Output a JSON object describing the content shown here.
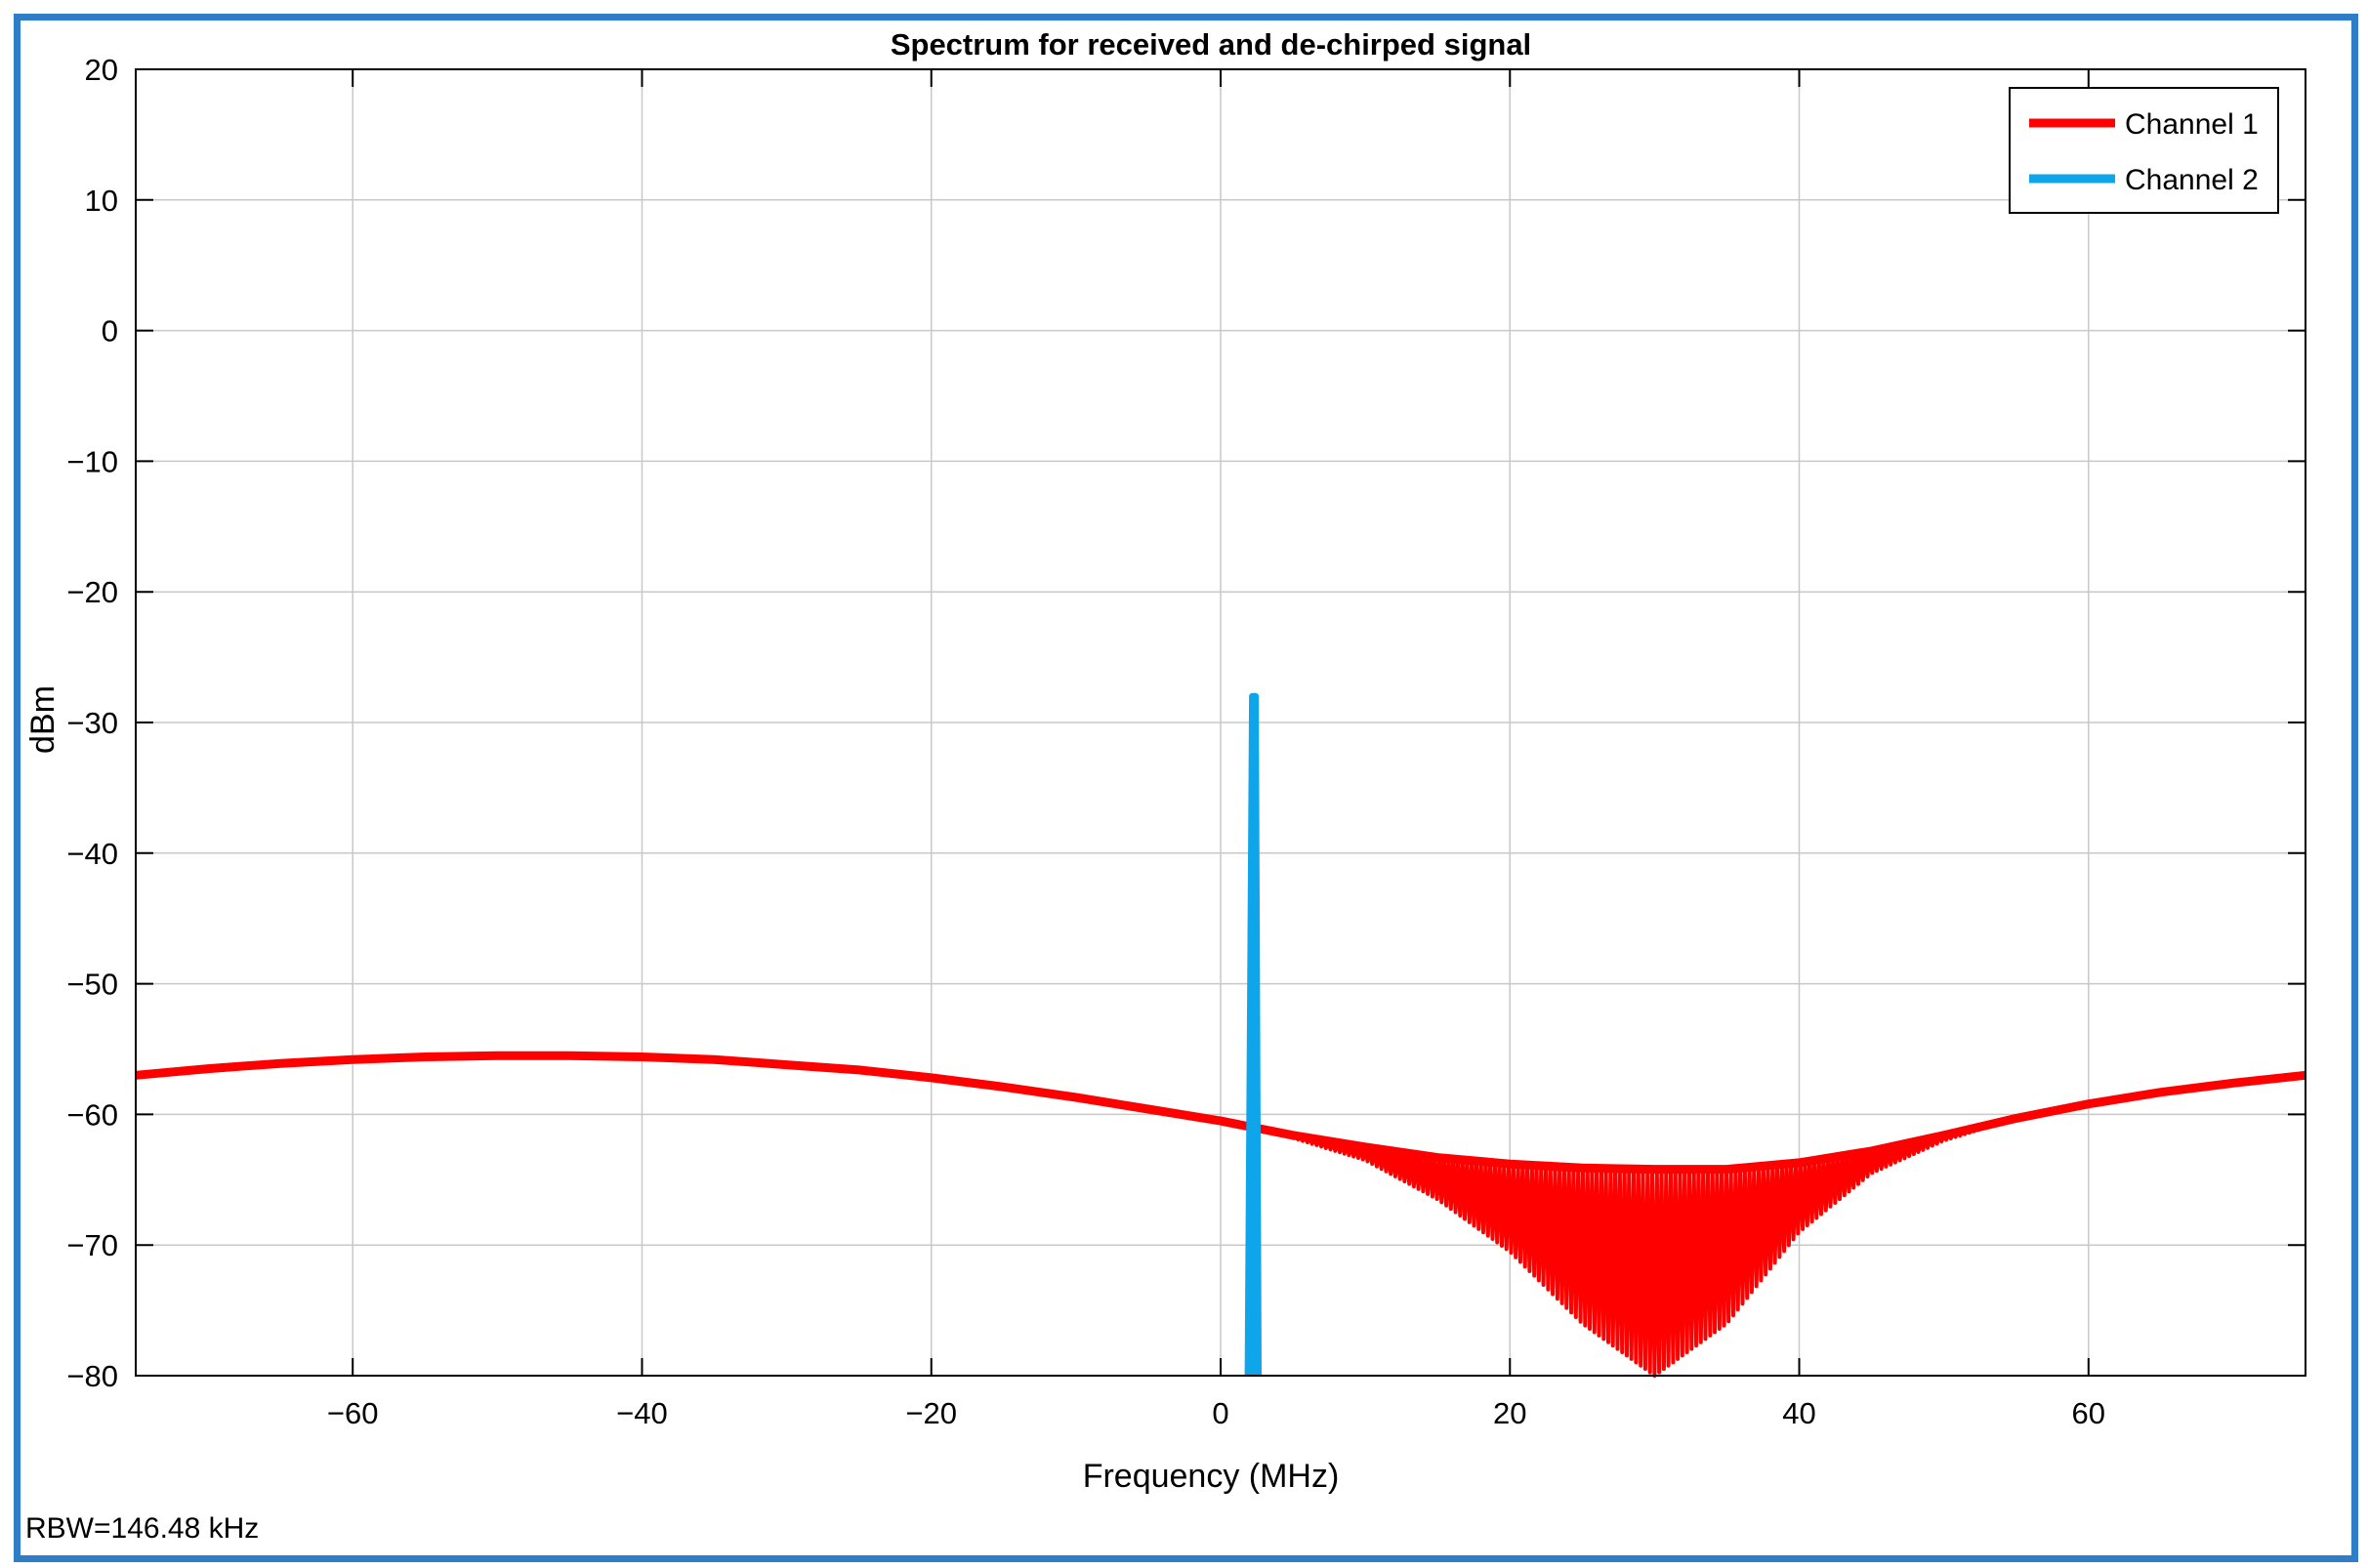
{
  "chart_data": {
    "type": "line",
    "title": "Spectrum for received and de-chirped signal",
    "xlabel": "Frequency (MHz)",
    "ylabel": "dBm",
    "xlim": [
      -75,
      75
    ],
    "ylim": [
      -80,
      20
    ],
    "xticks": [
      -60,
      -40,
      -20,
      0,
      20,
      40,
      60
    ],
    "yticks": [
      20,
      10,
      0,
      -10,
      -20,
      -30,
      -40,
      -50,
      -60,
      -70,
      -80
    ],
    "grid": true,
    "legend_position": "top-right",
    "footer": "RBW=146.48 kHz",
    "series": [
      {
        "name": "Channel 1",
        "color": "#ff0000",
        "x": [
          -75,
          -70,
          -65,
          -60,
          -55,
          -50,
          -45,
          -40,
          -35,
          -30,
          -25,
          -20,
          -15,
          -10,
          -5,
          0,
          5,
          10,
          15,
          20,
          25,
          30,
          35,
          40,
          45,
          50,
          55,
          60,
          65,
          70,
          75
        ],
        "upper": [
          -57.0,
          -56.5,
          -56.1,
          -55.8,
          -55.6,
          -55.5,
          -55.5,
          -55.6,
          -55.8,
          -56.2,
          -56.6,
          -57.2,
          -57.9,
          -58.7,
          -59.6,
          -60.5,
          -61.6,
          -62.5,
          -63.3,
          -63.8,
          -64.1,
          -64.2,
          -64.2,
          -63.7,
          -62.8,
          -61.6,
          -60.3,
          -59.2,
          -58.3,
          -57.6,
          -57.0
        ],
        "lower": [
          -57.0,
          -56.5,
          -56.1,
          -55.8,
          -55.6,
          -55.5,
          -55.5,
          -55.6,
          -55.8,
          -56.2,
          -56.6,
          -57.2,
          -57.9,
          -58.7,
          -59.6,
          -60.5,
          -61.8,
          -63.5,
          -66.5,
          -70.5,
          -76.0,
          -80.0,
          -76.0,
          -69.0,
          -64.5,
          -62.0,
          -60.3,
          -59.2,
          -58.3,
          -57.6,
          -57.0
        ]
      },
      {
        "name": "Channel 2",
        "color": "#0ea5ea",
        "x": [
          1.9,
          2.2,
          2.4,
          2.6
        ],
        "values": [
          -80,
          -28,
          -28,
          -80
        ]
      }
    ]
  }
}
